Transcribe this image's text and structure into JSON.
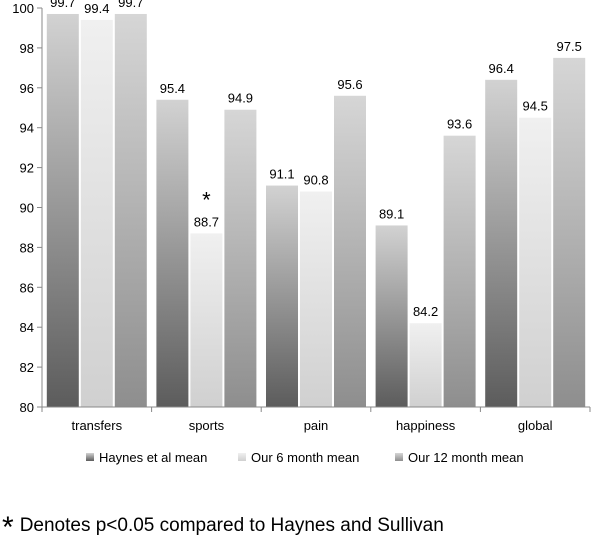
{
  "chart_data": {
    "type": "bar",
    "categories": [
      "transfers",
      "sports",
      "pain",
      "happiness",
      "global"
    ],
    "series": [
      {
        "name": "Haynes et al mean",
        "values": [
          99.7,
          95.4,
          91.1,
          89.1,
          96.4
        ]
      },
      {
        "name": "Our 6 month mean",
        "values": [
          99.4,
          88.7,
          90.8,
          84.2,
          94.5
        ]
      },
      {
        "name": "Our 12 month mean",
        "values": [
          99.7,
          94.9,
          95.6,
          93.6,
          97.5
        ]
      }
    ],
    "ylim": [
      80,
      100
    ],
    "yticks": [
      80,
      82,
      84,
      86,
      88,
      90,
      92,
      94,
      96,
      98,
      100
    ],
    "grid": false,
    "legend": "bottom",
    "annotations": [
      {
        "text": "*",
        "category": "sports",
        "series": "Our 6 month mean"
      }
    ],
    "colors": {
      "series_dark": [
        "#5c5c5c",
        "#d0d0d0",
        "#8e8e8e"
      ],
      "series_light": [
        "#d2d2d2",
        "#f0f0f0",
        "#d6d6d6"
      ]
    }
  },
  "footnote": {
    "symbol": "*",
    "text": "Denotes p<0.05 compared to Haynes and Sullivan"
  }
}
